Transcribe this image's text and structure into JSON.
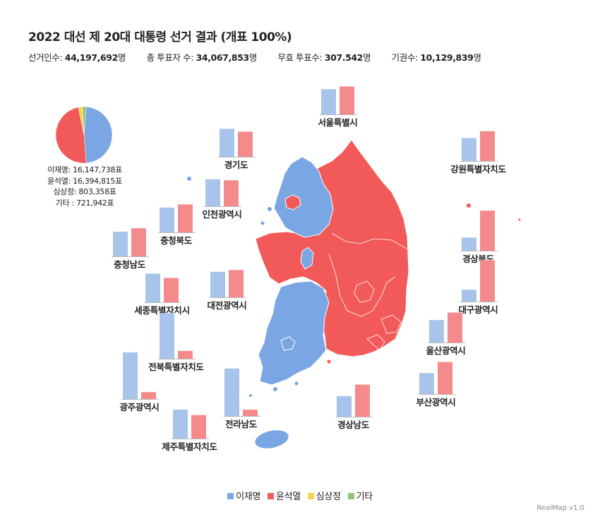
{
  "title": "2022 대선 제 20대 대통령 선거 결과 (개표 100%)",
  "stats": [
    {
      "label": "선거인수: ",
      "value": "44,197,692",
      "unit": "명"
    },
    {
      "label": "총 투표자 수: ",
      "value": "34,067,853",
      "unit": "명"
    },
    {
      "label": "무효 투표수: ",
      "value": "307.542",
      "unit": "명"
    },
    {
      "label": "기권수: ",
      "value": "10,129,839",
      "unit": "명"
    }
  ],
  "colors": {
    "lee": "#7aa6e3",
    "yoon": "#f25a5a",
    "sim": "#f5d44f",
    "etc": "#8fc47a",
    "lee_bar": "#a8c4ea",
    "yoon_bar": "#f58a8c"
  },
  "pie": {
    "lines": [
      "이재명: 16,147,738표",
      "윤석열: 16,394,815표",
      "심상정: 803,358표",
      "기타    : 721,942표"
    ]
  },
  "chart_data": {
    "type": "bar",
    "series_names": [
      "이재명",
      "윤석열"
    ],
    "national": [
      {
        "name": "이재명",
        "votes": 16147738
      },
      {
        "name": "윤석열",
        "votes": 16394815
      },
      {
        "name": "심상정",
        "votes": 803358
      },
      {
        "name": "기타",
        "votes": 721942
      }
    ],
    "regions": [
      {
        "name": "서울특별시",
        "lee": 45.7,
        "yoon": 50.6
      },
      {
        "name": "경기도",
        "lee": 50.9,
        "yoon": 45.6
      },
      {
        "name": "강원특별자치도",
        "lee": 41.7,
        "yoon": 54.2
      },
      {
        "name": "인천광역시",
        "lee": 48.9,
        "yoon": 47.1
      },
      {
        "name": "충청북도",
        "lee": 45.1,
        "yoon": 50.7
      },
      {
        "name": "충청남도",
        "lee": 44.9,
        "yoon": 51.1
      },
      {
        "name": "경상북도",
        "lee": 23.8,
        "yoon": 72.8
      },
      {
        "name": "세종특별자치시",
        "lee": 51.9,
        "yoon": 44.1
      },
      {
        "name": "대전광역시",
        "lee": 46.4,
        "yoon": 49.6
      },
      {
        "name": "대구광역시",
        "lee": 21.6,
        "yoon": 75.1
      },
      {
        "name": "울산광역시",
        "lee": 40.8,
        "yoon": 54.4
      },
      {
        "name": "전북특별자치도",
        "lee": 83.0,
        "yoon": 14.4
      },
      {
        "name": "부산광역시",
        "lee": 38.2,
        "yoon": 58.3
      },
      {
        "name": "광주광역시",
        "lee": 84.8,
        "yoon": 12.7
      },
      {
        "name": "전라남도",
        "lee": 86.1,
        "yoon": 11.4
      },
      {
        "name": "경상남도",
        "lee": 37.4,
        "yoon": 58.2
      },
      {
        "name": "제주특별자치도",
        "lee": 52.6,
        "yoon": 42.7
      }
    ]
  },
  "legend": [
    {
      "label": "이재명",
      "color": "#7aa6e3"
    },
    {
      "label": "윤석열",
      "color": "#f25a5a"
    },
    {
      "label": "심상정",
      "color": "#f5d44f"
    },
    {
      "label": "기타",
      "color": "#8fc47a"
    }
  ],
  "credit": "RealMap v1.0"
}
